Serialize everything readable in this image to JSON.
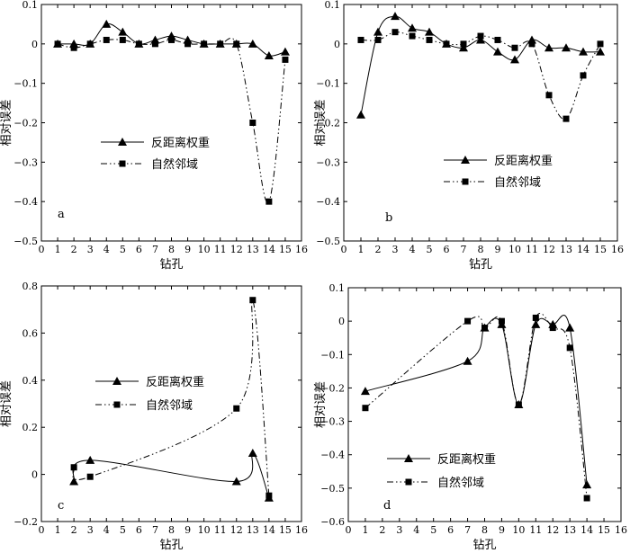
{
  "chart_data": [
    {
      "type": "line",
      "panel_label": "a",
      "xlabel": "钻孔",
      "ylabel": "相对误差",
      "xlim": [
        0,
        16
      ],
      "ylim": [
        -0.5,
        0.1
      ],
      "xticks": [
        0,
        1,
        2,
        3,
        4,
        5,
        6,
        7,
        8,
        9,
        10,
        11,
        12,
        13,
        14,
        15,
        16
      ],
      "yticks": [
        -0.5,
        -0.4,
        -0.3,
        -0.2,
        -0.1,
        0,
        0.1
      ],
      "ytick_labels": [
        "−0.5",
        "−0.4",
        "−0.3",
        "−0.2",
        "−0.1",
        "0",
        "0.1"
      ],
      "legend_position": "center-left",
      "series": [
        {
          "name": "反距离权重",
          "marker": "triangle",
          "style": "solid",
          "points": [
            [
              1,
              0.0
            ],
            [
              2,
              0.0
            ],
            [
              3,
              0.0
            ],
            [
              4,
              0.05
            ],
            [
              5,
              0.03
            ],
            [
              6,
              0.0
            ],
            [
              7,
              0.01
            ],
            [
              8,
              0.02
            ],
            [
              9,
              0.01
            ],
            [
              10,
              0.0
            ],
            [
              11,
              0.0
            ],
            [
              12,
              0.0
            ],
            [
              13,
              0.0
            ],
            [
              14,
              -0.03
            ],
            [
              15,
              -0.02
            ]
          ]
        },
        {
          "name": "自然邻域",
          "marker": "square",
          "style": "dashdotdot",
          "points": [
            [
              1,
              0.0
            ],
            [
              2,
              -0.01
            ],
            [
              3,
              0.0
            ],
            [
              4,
              0.01
            ],
            [
              5,
              0.01
            ],
            [
              6,
              0.0
            ],
            [
              7,
              0.0
            ],
            [
              8,
              0.01
            ],
            [
              9,
              0.0
            ],
            [
              10,
              0.0
            ],
            [
              11,
              0.0
            ],
            [
              12,
              0.0
            ],
            [
              13,
              -0.2
            ],
            [
              14,
              -0.4
            ],
            [
              15,
              -0.04
            ]
          ]
        }
      ]
    },
    {
      "type": "line",
      "panel_label": "b",
      "xlabel": "钻孔",
      "ylabel": "相对误差",
      "xlim": [
        0,
        16
      ],
      "ylim": [
        -0.5,
        0.1
      ],
      "xticks": [
        0,
        1,
        2,
        3,
        4,
        5,
        6,
        7,
        8,
        9,
        10,
        11,
        12,
        13,
        14,
        15,
        16
      ],
      "yticks": [
        -0.5,
        -0.4,
        -0.3,
        -0.2,
        -0.1,
        0,
        0.1
      ],
      "ytick_labels": [
        "−0.5",
        "−0.4",
        "−0.3",
        "−0.2",
        "−0.1",
        "0",
        "0.1"
      ],
      "legend_position": "center-right",
      "series": [
        {
          "name": "反距离权重",
          "marker": "triangle",
          "style": "solid",
          "points": [
            [
              1,
              -0.18
            ],
            [
              2,
              0.03
            ],
            [
              3,
              0.07
            ],
            [
              4,
              0.04
            ],
            [
              5,
              0.03
            ],
            [
              6,
              0.0
            ],
            [
              7,
              -0.01
            ],
            [
              8,
              0.01
            ],
            [
              9,
              -0.02
            ],
            [
              10,
              -0.04
            ],
            [
              11,
              0.01
            ],
            [
              12,
              -0.01
            ],
            [
              13,
              -0.01
            ],
            [
              14,
              -0.02
            ],
            [
              15,
              -0.02
            ]
          ]
        },
        {
          "name": "自然邻域",
          "marker": "square",
          "style": "dashdotdot",
          "points": [
            [
              1,
              0.01
            ],
            [
              2,
              0.01
            ],
            [
              3,
              0.03
            ],
            [
              4,
              0.02
            ],
            [
              5,
              0.01
            ],
            [
              6,
              0.0
            ],
            [
              7,
              0.0
            ],
            [
              8,
              0.02
            ],
            [
              9,
              0.01
            ],
            [
              10,
              -0.01
            ],
            [
              11,
              0.0
            ],
            [
              12,
              -0.13
            ],
            [
              13,
              -0.19
            ],
            [
              14,
              -0.08
            ],
            [
              15,
              0.0
            ]
          ]
        }
      ]
    },
    {
      "type": "line",
      "panel_label": "c",
      "xlabel": "钻孔",
      "ylabel": "相对误差",
      "xlim": [
        0,
        16
      ],
      "ylim": [
        -0.2,
        0.8
      ],
      "xticks": [
        0,
        1,
        2,
        3,
        4,
        5,
        6,
        7,
        8,
        9,
        10,
        11,
        12,
        13,
        14,
        15,
        16
      ],
      "yticks": [
        -0.2,
        0,
        0.2,
        0.4,
        0.6,
        0.8
      ],
      "ytick_labels": [
        "−0.2",
        "0",
        "0.2",
        "0.4",
        "0.6",
        "0.8"
      ],
      "legend_position": "center-left",
      "series": [
        {
          "name": "反距离权重",
          "marker": "triangle",
          "style": "solid",
          "points": [
            [
              2,
              -0.03
            ],
            [
              3,
              0.06
            ],
            [
              12,
              -0.03
            ],
            [
              13,
              0.09
            ],
            [
              14,
              -0.1
            ]
          ]
        },
        {
          "name": "自然邻域",
          "marker": "square",
          "style": "dashdotdot",
          "points": [
            [
              2,
              0.03
            ],
            [
              3,
              -0.01
            ],
            [
              12,
              0.28
            ],
            [
              13,
              0.74
            ],
            [
              14,
              -0.09
            ]
          ]
        }
      ]
    },
    {
      "type": "line",
      "panel_label": "d",
      "xlabel": "钻孔",
      "ylabel": "相对误差",
      "xlim": [
        0,
        16
      ],
      "ylim": [
        -0.6,
        0.1
      ],
      "xticks": [
        0,
        1,
        2,
        3,
        4,
        5,
        6,
        7,
        8,
        9,
        10,
        11,
        12,
        13,
        14,
        15,
        16
      ],
      "yticks": [
        -0.6,
        -0.5,
        -0.4,
        -0.3,
        -0.2,
        -0.1,
        0,
        0.1
      ],
      "ytick_labels": [
        "−0.6",
        "−0.5",
        "−0.4",
        "−0.3",
        "−0.2",
        "−0.1",
        "0",
        "0.1"
      ],
      "legend_position": "bottom-center",
      "series": [
        {
          "name": "反距离权重",
          "marker": "triangle",
          "style": "solid",
          "points": [
            [
              1,
              -0.21
            ],
            [
              7,
              -0.12
            ],
            [
              8,
              -0.02
            ],
            [
              9,
              -0.01
            ],
            [
              10,
              -0.25
            ],
            [
              11,
              -0.01
            ],
            [
              12,
              -0.01
            ],
            [
              13,
              -0.02
            ],
            [
              14,
              -0.49
            ]
          ]
        },
        {
          "name": "自然邻域",
          "marker": "square",
          "style": "dashdotdot",
          "points": [
            [
              1,
              -0.26
            ],
            [
              7,
              0.0
            ],
            [
              8,
              -0.02
            ],
            [
              9,
              0.0
            ],
            [
              10,
              -0.25
            ],
            [
              11,
              0.01
            ],
            [
              12,
              -0.02
            ],
            [
              13,
              -0.08
            ],
            [
              14,
              -0.53
            ]
          ]
        }
      ]
    }
  ]
}
